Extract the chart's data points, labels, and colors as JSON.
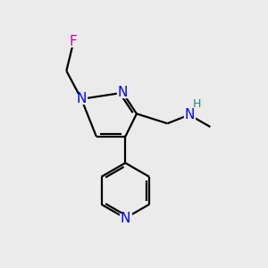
{
  "background_color": "#ebebeb",
  "bond_color": "#000000",
  "atom_colors": {
    "N": "#0000ee",
    "F": "#cc00bb",
    "H": "#2a8080",
    "C": "#000000"
  },
  "font_size_atoms": 11,
  "font_size_small": 9,
  "figsize": [
    3.0,
    3.0
  ],
  "dpi": 100
}
